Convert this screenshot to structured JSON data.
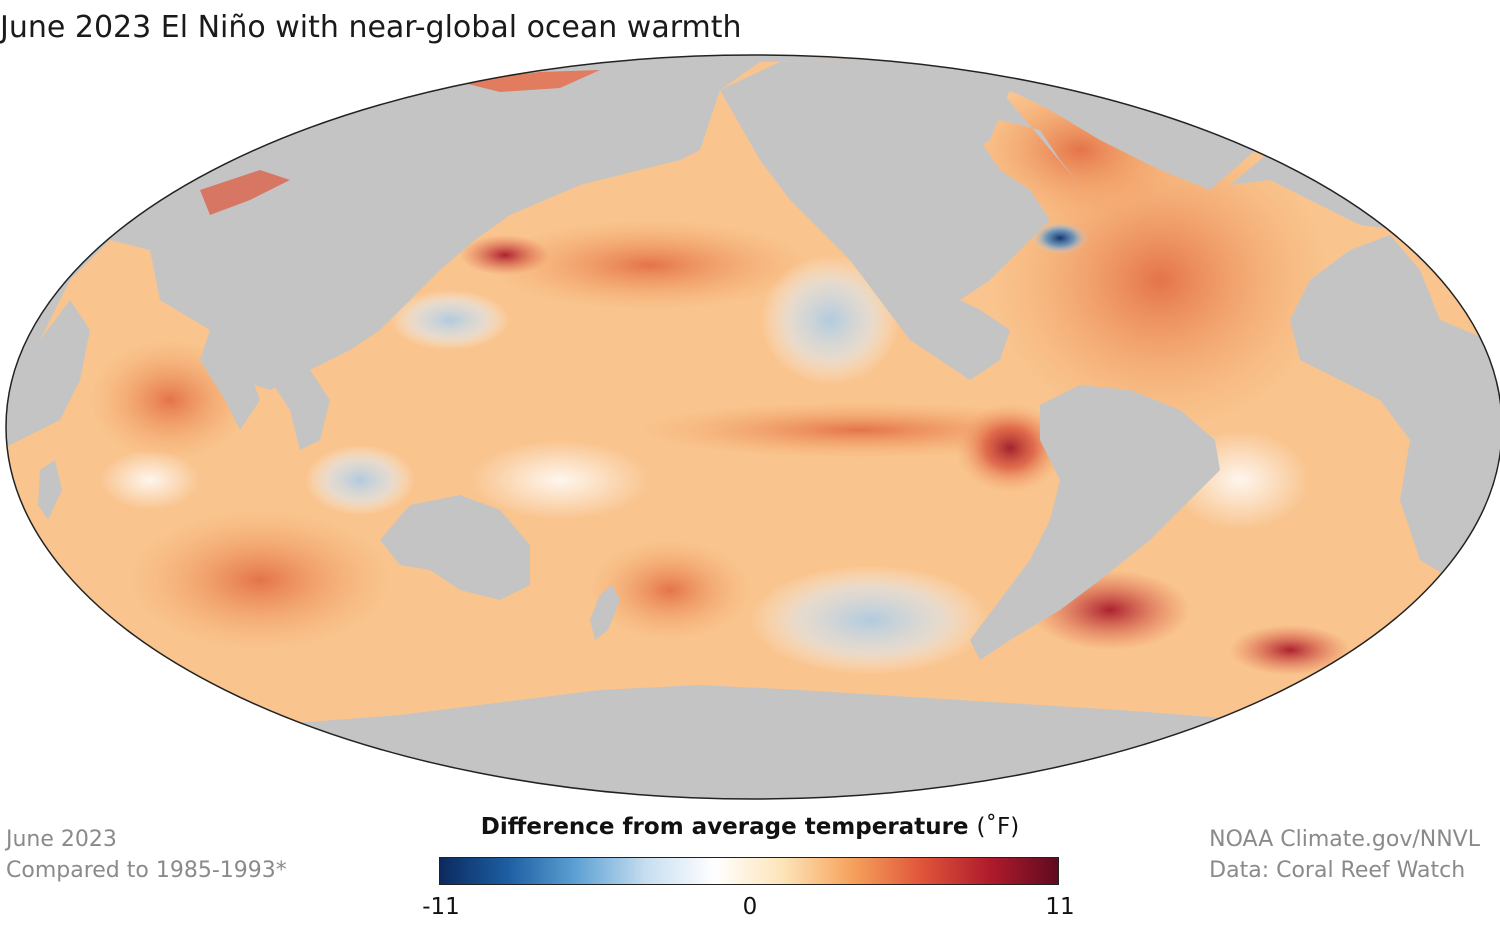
{
  "title": "June 2023 El Niño with near-global ocean warmth",
  "footer_left": {
    "line1": "June 2023",
    "line2": "Compared to 1985-1993*"
  },
  "footer_right": {
    "line1": "NOAA Climate.gov/NNVL",
    "line2": "Data: Coral Reef Watch"
  },
  "legend": {
    "title": "Difference from average temperature",
    "unit": "(˚F)",
    "min": -11,
    "mid": 0,
    "max": 11,
    "tick_min": "-11",
    "tick_mid": "0",
    "tick_max": "11",
    "colors": [
      "#0b2a5e",
      "#1d5fa3",
      "#5fa2d4",
      "#c7def0",
      "#ffffff",
      "#fde4b8",
      "#f6a25c",
      "#e0563a",
      "#b01b2c",
      "#600a20"
    ]
  },
  "map": {
    "projection": "Mollweide",
    "land_color": "#c4c4c4",
    "ocean_base_color": "#f9c48e",
    "features": [
      "El Niño warm tongue along equatorial eastern Pacific",
      "Warm North Atlantic",
      "Cool anomalies off Gulf of Maine and eastern Pacific"
    ]
  }
}
